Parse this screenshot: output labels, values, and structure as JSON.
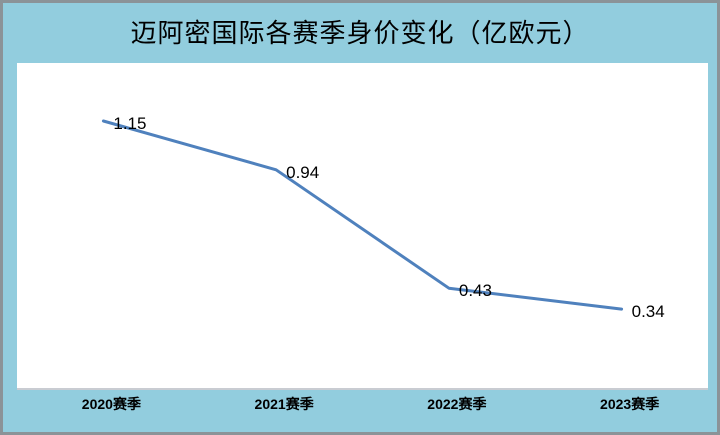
{
  "title": "迈阿密国际各赛季身价变化（亿欧元）",
  "colors": {
    "background": "#92cdde",
    "frame_border": "#8b9398",
    "plot_background": "#ffffff",
    "line": "#4f81bd",
    "text": "#000000"
  },
  "chart_data": {
    "type": "line",
    "title": "迈阿密国际各赛季身价变化（亿欧元）",
    "categories": [
      "2020赛季",
      "2021赛季",
      "2022赛季",
      "2023赛季"
    ],
    "values": [
      1.15,
      0.94,
      0.43,
      0.34
    ],
    "data_labels": [
      "1.15",
      "0.94",
      "0.43",
      "0.34"
    ],
    "xlabel": "",
    "ylabel": "",
    "ylim": [
      0,
      1.4
    ],
    "grid": false,
    "legend": false,
    "line_color": "#4f81bd",
    "line_width": 3
  }
}
